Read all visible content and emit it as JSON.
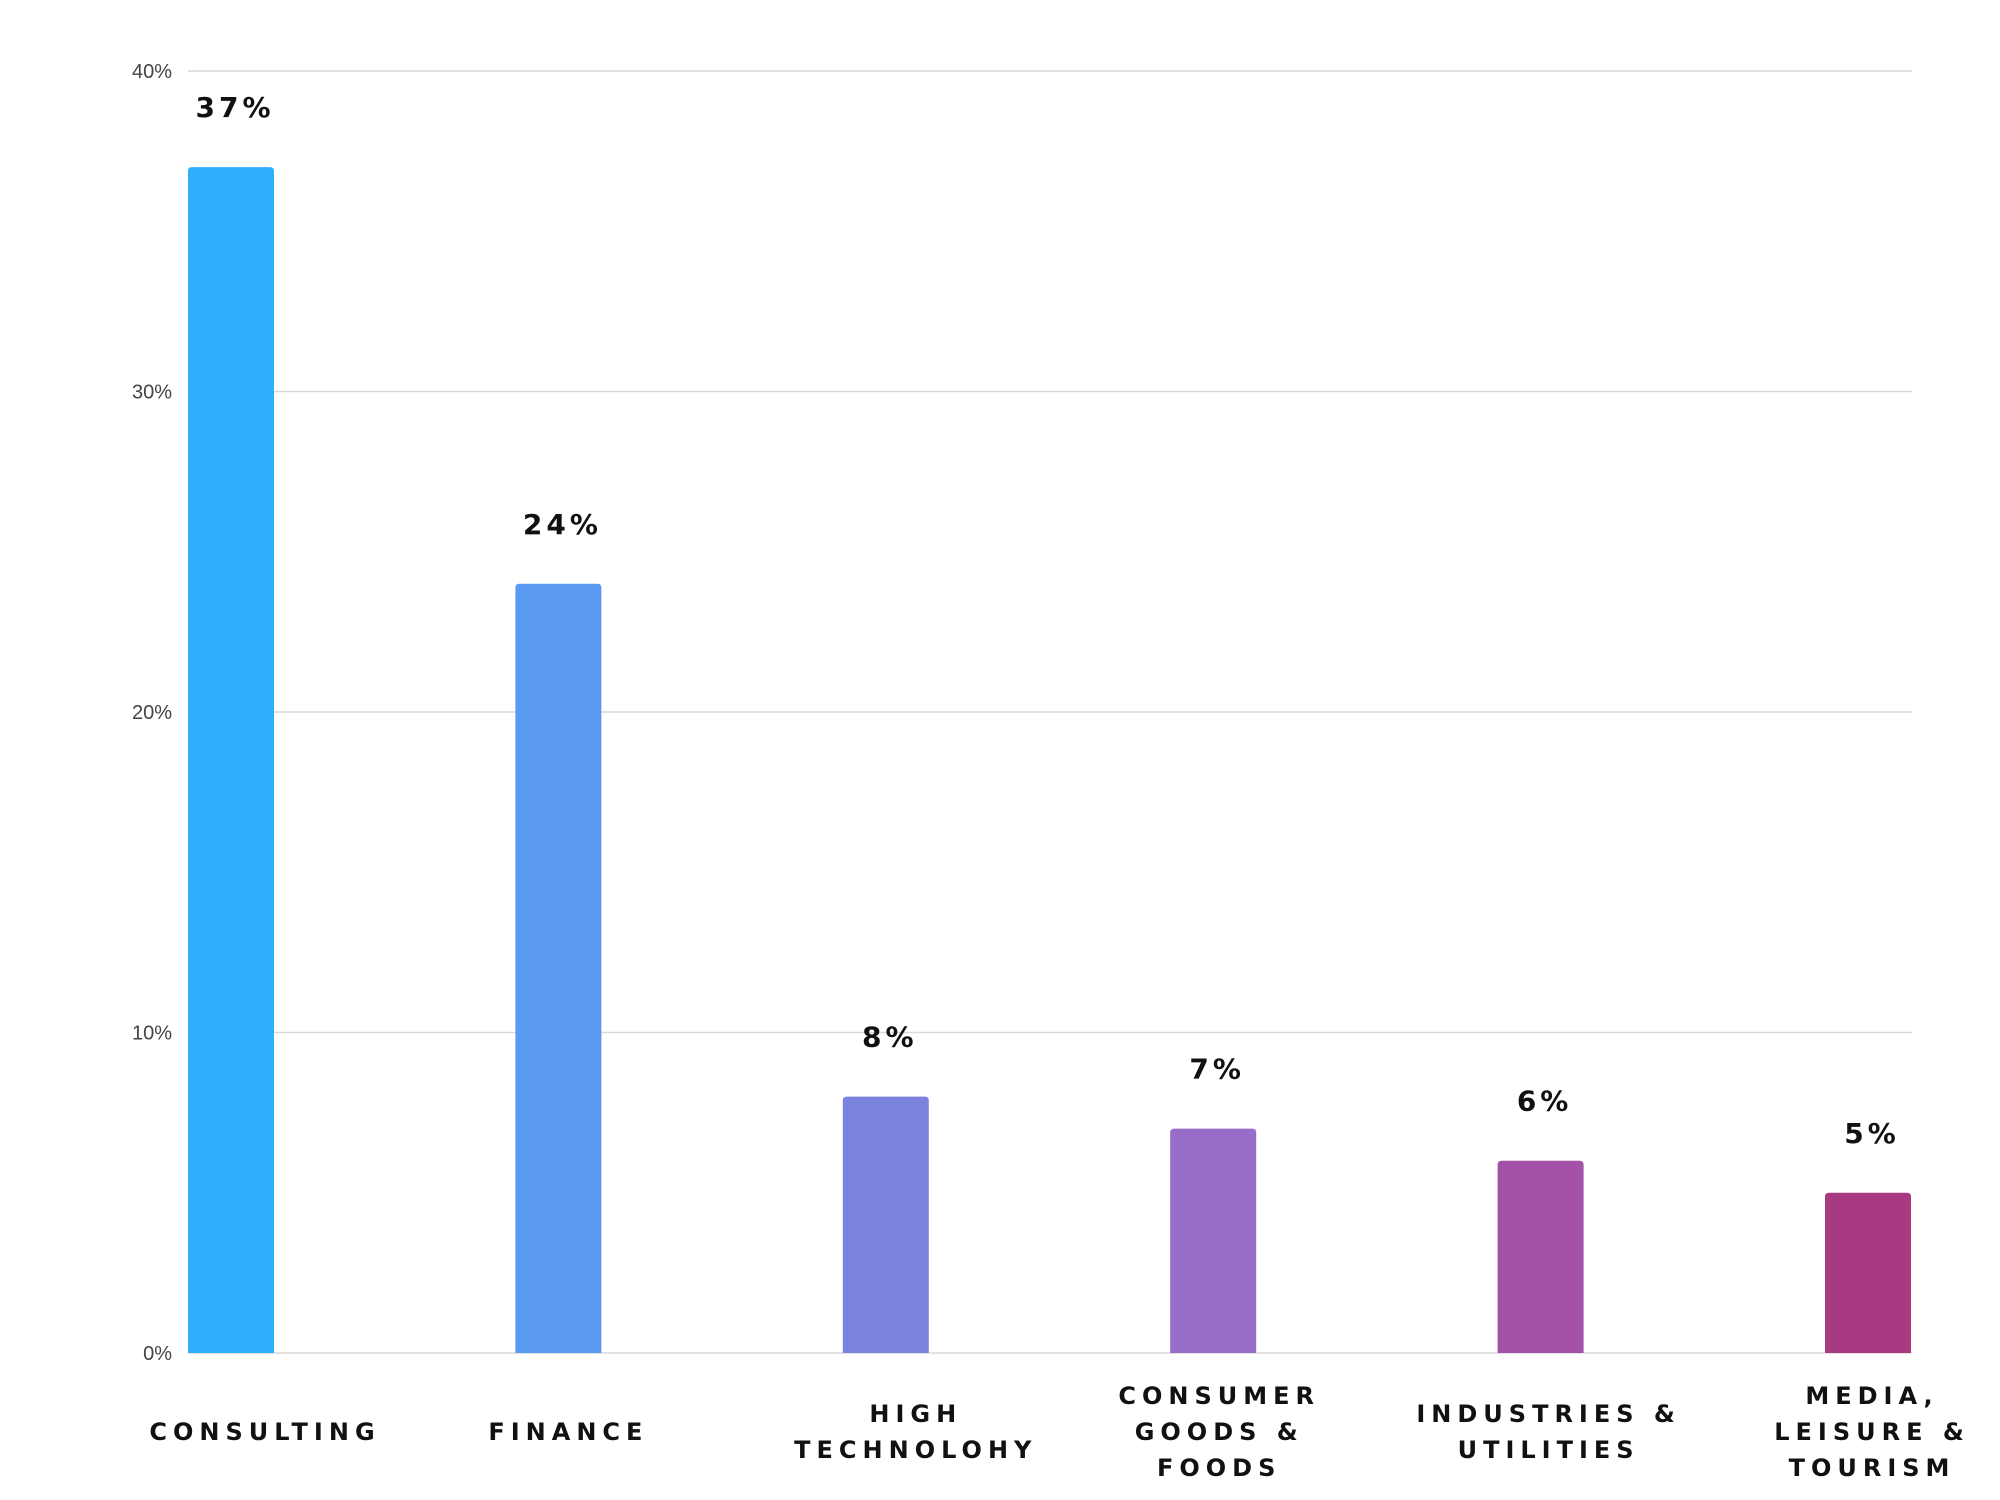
{
  "chart_data": {
    "type": "bar",
    "title": "",
    "xlabel": "",
    "ylabel": "",
    "ylim": [
      0,
      40
    ],
    "yticks": [
      {
        "value": 0,
        "label": "0%"
      },
      {
        "value": 10,
        "label": "10%"
      },
      {
        "value": 20,
        "label": "20%"
      },
      {
        "value": 30,
        "label": "30%"
      },
      {
        "value": 40,
        "label": "40%"
      }
    ],
    "grid": true,
    "categories": [
      {
        "label": "CONSULTING",
        "lines": [
          "CONSULTING"
        ]
      },
      {
        "label": "FINANCE",
        "lines": [
          "FINANCE"
        ]
      },
      {
        "label": "HIGH TECHNOLOHY",
        "lines": [
          "HIGH",
          "TECHNOLOHY"
        ]
      },
      {
        "label": "CONSUMER GOODS & FOODS",
        "lines": [
          "CONSUMER",
          "GOODS &",
          "FOODS"
        ]
      },
      {
        "label": "INDUSTRIES & UTILITIES",
        "lines": [
          "INDUSTRIES &",
          "UTILITIES"
        ]
      },
      {
        "label": "MEDIA, LEISURE & TOURISM",
        "lines": [
          "MEDIA,",
          "LEISURE &",
          "TOURISM"
        ]
      }
    ],
    "values": [
      37,
      24,
      8,
      7,
      6,
      5
    ],
    "value_labels": [
      "37%",
      "24%",
      "8%",
      "7%",
      "6%",
      "5%"
    ],
    "colors": [
      "#2eaefb",
      "#5a9af0",
      "#7b83de",
      "#976dc8",
      "#a452a8",
      "#a73a80"
    ]
  }
}
